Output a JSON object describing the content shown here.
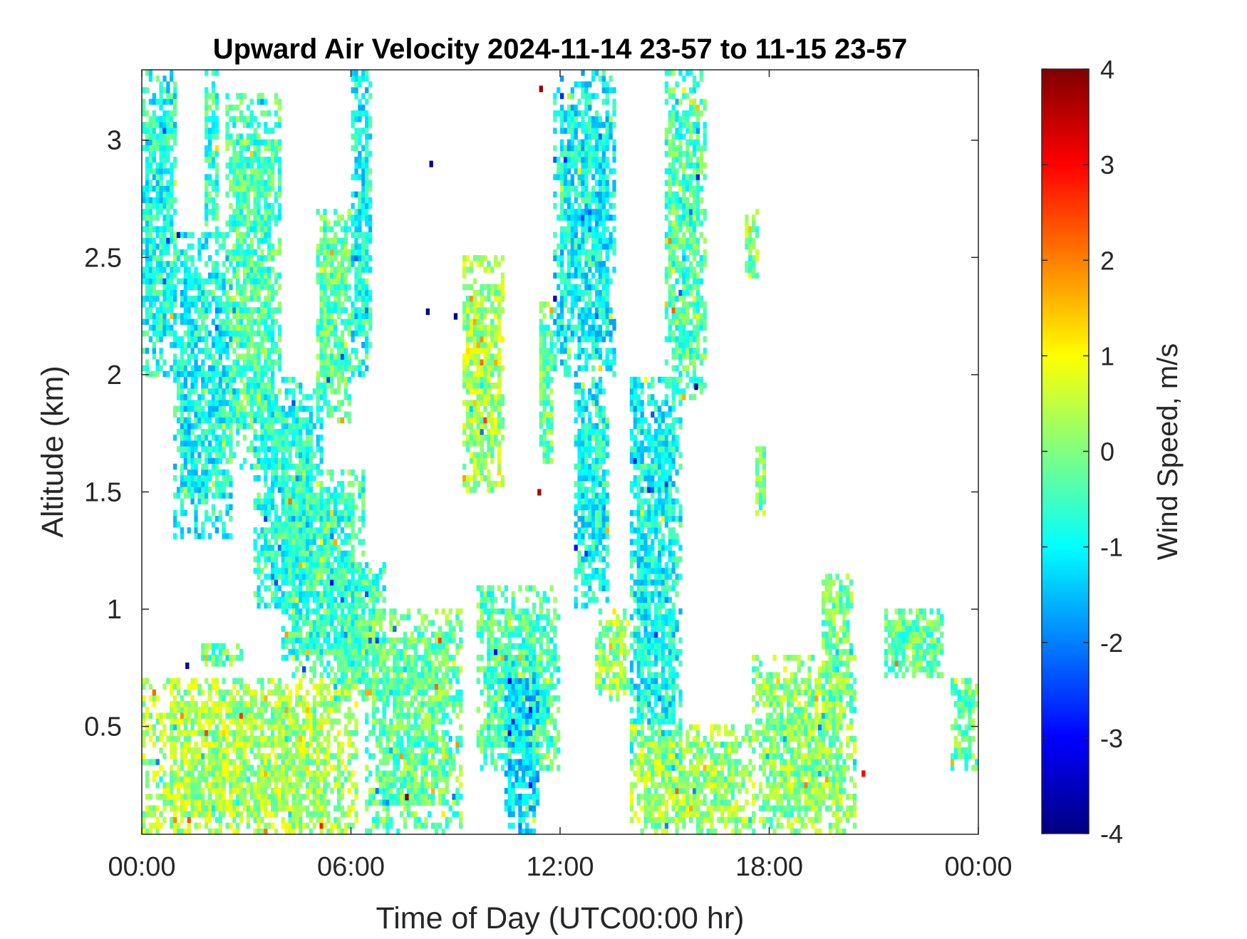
{
  "chart_data": {
    "type": "heatmap",
    "title": "Upward Air Velocity 2024-11-14 23-57 to 11-15 23-57",
    "xlabel": "Time of Day (UTC00:00 hr)",
    "ylabel": "Altitude (km)",
    "x_tick_labels": [
      "00:00",
      "06:00",
      "12:00",
      "18:00",
      "00:00"
    ],
    "x_tick_hours": [
      0,
      6,
      12,
      18,
      24
    ],
    "xlim_hours": [
      0,
      24
    ],
    "y_ticks": [
      0.5,
      1,
      1.5,
      2,
      2.5,
      3
    ],
    "y_tick_labels": [
      "0.5",
      "1",
      "1.5",
      "2",
      "2.5",
      "3"
    ],
    "ylim_km": [
      0.04,
      3.3
    ],
    "colorbar": {
      "label": "Wind Speed, m/s",
      "ticks": [
        -4,
        -3,
        -2,
        -1,
        0,
        1,
        2,
        3,
        4
      ],
      "tick_labels": [
        "-4",
        "-3",
        "-2",
        "-1",
        "0",
        "1",
        "2",
        "3",
        "4"
      ],
      "clim": [
        -4,
        4
      ],
      "colormap": "jet"
    },
    "grid": false,
    "echo_regions": [
      {
        "t0": 0.0,
        "t1": 1.0,
        "z0": 2.0,
        "z1": 3.3,
        "mean": -0.8
      },
      {
        "t0": 0.9,
        "t1": 2.6,
        "z0": 1.3,
        "z1": 2.6,
        "mean": -0.9
      },
      {
        "t0": 1.8,
        "t1": 2.2,
        "z0": 2.6,
        "z1": 3.3,
        "mean": -0.6
      },
      {
        "t0": 2.4,
        "t1": 4.0,
        "z0": 1.6,
        "z1": 3.2,
        "mean": -0.4
      },
      {
        "t0": 3.2,
        "t1": 5.2,
        "z0": 1.0,
        "z1": 2.0,
        "mean": -0.7
      },
      {
        "t0": 4.0,
        "t1": 6.4,
        "z0": 0.7,
        "z1": 1.6,
        "mean": -0.6
      },
      {
        "t0": 5.0,
        "t1": 6.0,
        "z0": 1.8,
        "z1": 2.7,
        "mean": -0.3
      },
      {
        "t0": 6.0,
        "t1": 6.6,
        "z0": 2.0,
        "z1": 3.3,
        "mean": -0.9
      },
      {
        "t0": 5.5,
        "t1": 7.0,
        "z0": 0.6,
        "z1": 1.2,
        "mean": -0.5
      },
      {
        "t0": 0.0,
        "t1": 6.2,
        "z0": 0.04,
        "z1": 0.7,
        "mean": 0.3
      },
      {
        "t0": 1.7,
        "t1": 2.9,
        "z0": 0.75,
        "z1": 0.85,
        "mean": -0.2
      },
      {
        "t0": 6.4,
        "t1": 9.2,
        "z0": 0.04,
        "z1": 1.0,
        "mean": -0.2
      },
      {
        "t0": 9.2,
        "t1": 10.4,
        "z0": 1.5,
        "z1": 2.5,
        "mean": 0.3
      },
      {
        "t0": 9.6,
        "t1": 12.0,
        "z0": 0.3,
        "z1": 1.1,
        "mean": -0.4
      },
      {
        "t0": 10.4,
        "t1": 11.4,
        "z0": 0.04,
        "z1": 0.8,
        "mean": -1.2
      },
      {
        "t0": 11.4,
        "t1": 11.8,
        "z0": 1.6,
        "z1": 2.3,
        "mean": -0.2
      },
      {
        "t0": 11.8,
        "t1": 13.6,
        "z0": 2.0,
        "z1": 3.3,
        "mean": -1.0
      },
      {
        "t0": 12.4,
        "t1": 13.4,
        "z0": 1.0,
        "z1": 2.0,
        "mean": -0.9
      },
      {
        "t0": 14.0,
        "t1": 15.5,
        "z0": 0.3,
        "z1": 2.0,
        "mean": -0.9
      },
      {
        "t0": 15.0,
        "t1": 16.2,
        "z0": 1.9,
        "z1": 3.3,
        "mean": -0.4
      },
      {
        "t0": 13.0,
        "t1": 14.0,
        "z0": 0.6,
        "z1": 1.0,
        "mean": 0.2
      },
      {
        "t0": 14.0,
        "t1": 17.5,
        "z0": 0.04,
        "z1": 0.5,
        "mean": 0.2
      },
      {
        "t0": 17.3,
        "t1": 17.7,
        "z0": 2.4,
        "z1": 2.7,
        "mean": 0.1
      },
      {
        "t0": 17.6,
        "t1": 17.9,
        "z0": 1.4,
        "z1": 1.7,
        "mean": 0.0
      },
      {
        "t0": 17.5,
        "t1": 20.5,
        "z0": 0.04,
        "z1": 0.8,
        "mean": 0.1
      },
      {
        "t0": 19.5,
        "t1": 20.4,
        "z0": 0.6,
        "z1": 1.15,
        "mean": -0.1
      },
      {
        "t0": 21.3,
        "t1": 23.0,
        "z0": 0.7,
        "z1": 1.0,
        "mean": -0.2
      },
      {
        "t0": 23.2,
        "t1": 24.0,
        "z0": 0.3,
        "z1": 0.7,
        "mean": -0.2
      }
    ],
    "outlier_points": [
      {
        "t": 11.45,
        "z": 3.22,
        "v": 3.8
      },
      {
        "t": 7.6,
        "z": 0.2,
        "v": 4.0
      },
      {
        "t": 11.4,
        "z": 1.5,
        "v": 3.6
      },
      {
        "t": 8.2,
        "z": 2.27,
        "v": -3.9
      },
      {
        "t": 9.0,
        "z": 2.25,
        "v": -3.9
      },
      {
        "t": 8.3,
        "z": 2.9,
        "v": -3.8
      },
      {
        "t": 15.9,
        "z": 1.95,
        "v": -3.8
      },
      {
        "t": 1.3,
        "z": 0.76,
        "v": -3.7
      },
      {
        "t": 20.7,
        "z": 0.3,
        "v": 3.0
      }
    ]
  }
}
